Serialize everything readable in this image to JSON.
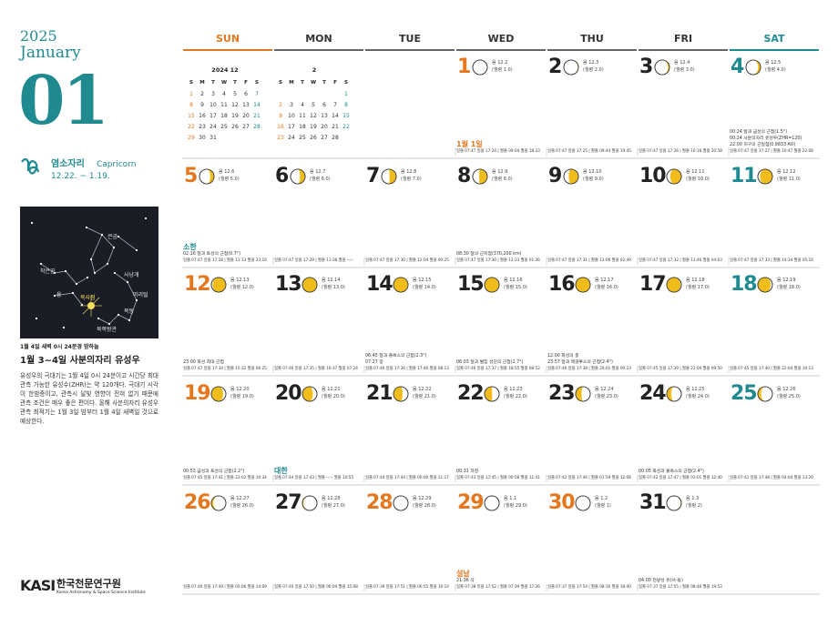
{
  "header": {
    "year": "2025",
    "month_name": "January",
    "month_number": "01"
  },
  "zodiac": {
    "name": "염소자리",
    "latin": "Capricorn",
    "dates": "12.22. ~ 1.19."
  },
  "star_map": {
    "labels": [
      "큰곰",
      "작은곰",
      "용",
      "사냥개",
      "머리털",
      "목동",
      "북쪽왕관"
    ],
    "radiant": "복사점",
    "caption": "1월 4일 새벽 0시 24분경 밤하늘"
  },
  "feature": {
    "title": "1월 3~4일 사분의자리 유성우",
    "body": "유성우의 극대기는 1월 4일 0시 24분이고 시간당 최대 관측 가능한 유성수(ZHR)는 약 120개다. 극대기 시각이 한밤중이고, 관측시 달빛 영향이 전혀 없기 때문에 관측 조건은 매우 좋은 편이다. 올해 사분의자리 유성우 관측 최적기는 1월 3일 밤부터 1월 4일 새벽일 것으로 예상한다."
  },
  "logo": {
    "mark": "KASI",
    "name": "한국천문연구원",
    "english": "Korea Astronomy & Space Science Institute"
  },
  "weekdays": [
    "SUN",
    "MON",
    "TUE",
    "WED",
    "THU",
    "FRI",
    "SAT"
  ],
  "mini_calendars": [
    {
      "title": "2024 12",
      "weekdays": [
        "S",
        "M",
        "T",
        "W",
        "T",
        "F",
        "S"
      ],
      "weeks": [
        [
          1,
          2,
          3,
          4,
          5,
          6,
          7
        ],
        [
          8,
          9,
          10,
          11,
          12,
          13,
          14
        ],
        [
          15,
          16,
          17,
          18,
          19,
          20,
          21
        ],
        [
          22,
          23,
          24,
          25,
          26,
          27,
          28
        ],
        [
          29,
          30,
          31,
          null,
          null,
          null,
          null
        ]
      ]
    },
    {
      "title": "2",
      "weekdays": [
        "S",
        "M",
        "T",
        "W",
        "T",
        "F",
        "S"
      ],
      "weeks": [
        [
          null,
          null,
          null,
          null,
          null,
          null,
          1
        ],
        [
          2,
          3,
          4,
          5,
          6,
          7,
          8
        ],
        [
          9,
          10,
          11,
          12,
          13,
          14,
          15
        ],
        [
          16,
          17,
          18,
          19,
          20,
          21,
          22
        ],
        [
          23,
          24,
          25,
          26,
          27,
          28,
          null
        ]
      ]
    }
  ],
  "days": [
    {
      "day": 1,
      "lunar": "음 12.2",
      "moon_age": "(월령 1.0)",
      "holiday": true,
      "label": "1월 1일",
      "events": [],
      "sun_moon": "일출 07:47 일몰 17:24 | 월출 09:04 월몰 18:33"
    },
    {
      "day": 2,
      "lunar": "음 12.3",
      "moon_age": "(월령 2.0)",
      "events": [],
      "sun_moon": "일출 07:47 일몰 17:25 | 월출 09:44 월몰 19:45"
    },
    {
      "day": 3,
      "lunar": "음 12.4",
      "moon_age": "(월령 3.0)",
      "events": [],
      "sun_moon": "일출 07:47 일몰 17:26 | 월출 10:18 월몰 20:58"
    },
    {
      "day": 4,
      "lunar": "음 12.5",
      "moon_age": "(월령 4.0)",
      "events": [
        "00:24 달과 금성의 근접(1.5°)",
        "00:24 사분의자리 유성우(ZHR=120)",
        "22:00 지구의 근일점(0.9833 AU)"
      ],
      "sun_moon": "일출 07:47 일몰 17:27 | 월출 10:47 월몰 22:08"
    },
    {
      "day": 5,
      "lunar": "음 12.6",
      "moon_age": "(월령 5.0)",
      "label": "소한",
      "events": [
        "02:16 달과 토성의 근접(0.7°)"
      ],
      "sun_moon": "일출 07:47 일몰 17:28 | 월출 11:13 월몰 23:16"
    },
    {
      "day": 6,
      "lunar": "음 12.7",
      "moon_age": "(월령 6.0)",
      "events": [],
      "sun_moon": "일출 07:47 일몰 17:29 | 월출 11:38 월몰 --:--"
    },
    {
      "day": 7,
      "lunar": "음 12.8",
      "moon_age": "(월령 7.0)",
      "events": [],
      "sun_moon": "일출 07:47 일몰 17:30 | 월출 12:04 월몰 00:25"
    },
    {
      "day": 8,
      "lunar": "음 12.9",
      "moon_age": "(월령 8.0)",
      "events": [
        "08:30 달의 근지점(370,200 km)"
      ],
      "sun_moon": "일출 07:47 일몰 17:30 | 월출 12:33 월몰 01:36"
    },
    {
      "day": 9,
      "lunar": "음 12.10",
      "moon_age": "(월령 9.0)",
      "events": [],
      "sun_moon": "일출 07:47 일몰 17:31 | 월출 13:06 월몰 02:49"
    },
    {
      "day": 10,
      "lunar": "음 12.11",
      "moon_age": "(월령 10.0)",
      "events": [],
      "sun_moon": "일출 07:47 일몰 17:32 | 월출 13:46 월몰 04:03"
    },
    {
      "day": 11,
      "lunar": "음 12.12",
      "moon_age": "(월령 11.0)",
      "events": [],
      "sun_moon": "일출 07:47 일몰 17:33 | 월출 14:34 월몰 05:16"
    },
    {
      "day": 12,
      "lunar": "음 12.13",
      "moon_age": "(월령 12.0)",
      "events": [
        "23:00 화성 최대 근접"
      ],
      "sun_moon": "일출 07:47 일몰 17:34 | 월출 15:32 월몰 06:25"
    },
    {
      "day": 13,
      "lunar": "음 12.14",
      "moon_age": "(월령 13.0)",
      "events": [],
      "sun_moon": "일출 07:46 일몰 17:35 | 월출 16:37 월몰 07:24"
    },
    {
      "day": 14,
      "lunar": "음 12.15",
      "moon_age": "(월령 14.0)",
      "events": [
        "06:45 달과 폴룩스의 근접(2.3°)",
        "07:27 망"
      ],
      "sun_moon": "일출 07:46 일몰 17:36 | 월출 17:46 월몰 08:13"
    },
    {
      "day": 15,
      "lunar": "음 12.16",
      "moon_age": "(월령 15.0)",
      "events": [
        "06:03 달과 벌집 성단의 근접(2.7°)"
      ],
      "sun_moon": "일출 07:46 일몰 17:37 | 월출 18:55 월몰 08:52"
    },
    {
      "day": 16,
      "lunar": "음 12.17",
      "moon_age": "(월령 16.0)",
      "events": [
        "12:00 화성의 충",
        "23:57 달과 레굴루스의 근접(2.4°)"
      ],
      "sun_moon": "일출 07:46 일몰 17:38 | 월출 20:01 월몰 09:23"
    },
    {
      "day": 17,
      "lunar": "음 12.18",
      "moon_age": "(월령 17.0)",
      "events": [],
      "sun_moon": "일출 07:45 일몰 17:39 | 월출 21:04 월몰 09:50"
    },
    {
      "day": 18,
      "lunar": "음 12.19",
      "moon_age": "(월령 18.0)",
      "events": [],
      "sun_moon": "일출 07:45 일몰 17:40 | 월출 22:04 월몰 10:13"
    },
    {
      "day": 19,
      "lunar": "음 12.20",
      "moon_age": "(월령 19.0)",
      "events": [
        "00:53 금성과 토성의 근접(2.2°)"
      ],
      "sun_moon": "일출 07:45 일몰 17:41 | 월출 23:02 월몰 10:34"
    },
    {
      "day": 20,
      "lunar": "음 12.21",
      "moon_age": "(월령 20.0)",
      "label": "대한",
      "events": [],
      "sun_moon": "일출 07:44 일몰 17:43 | 월출 --:-- 월몰 10:55"
    },
    {
      "day": 21,
      "lunar": "음 12.22",
      "moon_age": "(월령 21.0)",
      "events": [],
      "sun_moon": "일출 07:44 일몰 17:44 | 월출 00:00 월몰 11:17"
    },
    {
      "day": 22,
      "lunar": "음 12.23",
      "moon_age": "(월령 22.0)",
      "events": [
        "00:31 하현"
      ],
      "sun_moon": "일출 07:43 일몰 17:45 | 월출 00:58 월몰 11:41"
    },
    {
      "day": 23,
      "lunar": "음 12.24",
      "moon_age": "(월령 23.0)",
      "events": [],
      "sun_moon": "일출 07:42 일몰 17:46 | 월출 01:59 월몰 12:08"
    },
    {
      "day": 24,
      "lunar": "음 12.25",
      "moon_age": "(월령 24.0)",
      "events": [
        "00:05 화성과 폴룩스의 근접(2.4°)"
      ],
      "sun_moon": "일출 07:42 일몰 17:47 | 월출 03:01 월몰 12:40"
    },
    {
      "day": 25,
      "lunar": "음 12.26",
      "moon_age": "(월령 25.0)",
      "events": [],
      "sun_moon": "일출 07:41 일몰 17:48 | 월출 04:04 월몰 13:20"
    },
    {
      "day": 26,
      "lunar": "음 12.27",
      "moon_age": "(월령 26.0)",
      "events": [],
      "sun_moon": "일출 07:40 일몰 17:49 | 월출 05:06 월몰 14:09"
    },
    {
      "day": 27,
      "lunar": "음 12.28",
      "moon_age": "(월령 27.0)",
      "events": [],
      "sun_moon": "일출 07:40 일몰 17:50 | 월출 06:04 월몰 15:08"
    },
    {
      "day": 28,
      "lunar": "음 12.29",
      "moon_age": "(월령 28.0)",
      "holiday": true,
      "events": [],
      "sun_moon": "일출 07:39 일몰 17:51 | 월출 06:55 월몰 16:14"
    },
    {
      "day": 29,
      "lunar": "음 1.1",
      "moon_age": "(월령 29.0)",
      "holiday": true,
      "label": "설날",
      "events": [
        "21:36 삭"
      ],
      "sun_moon": "일출 07:38 일몰 17:52 | 월출 07:39 월몰 17:26"
    },
    {
      "day": 30,
      "lunar": "음 1.2",
      "moon_age": "(월령 1)",
      "holiday": true,
      "events": [],
      "sun_moon": "일출 07:37 일몰 17:54 | 월출 08:16 월몰 18:40"
    },
    {
      "day": 31,
      "lunar": "음 1.3",
      "moon_age": "(월령 2)",
      "events": [
        "04:00 천왕성 유(서-동)"
      ],
      "sun_moon": "일출 07:37 일몰 17:55 | 월출 08:46 월몰 19:53"
    }
  ]
}
